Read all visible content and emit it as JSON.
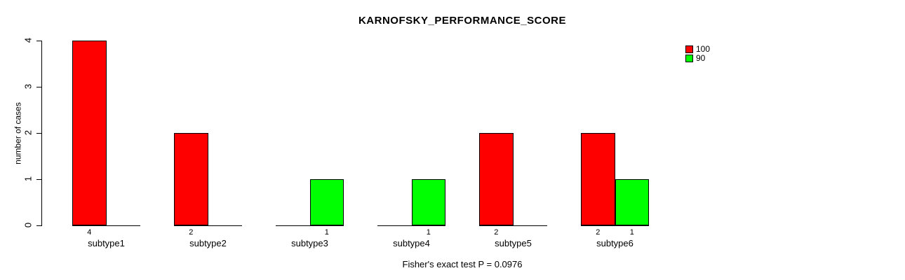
{
  "chart_data": {
    "type": "bar",
    "grouped": true,
    "title": "KARNOFSKY_PERFORMANCE_SCORE",
    "xlabel": "",
    "ylabel": "number of cases",
    "ylim": [
      0,
      4
    ],
    "yticks": [
      0,
      1,
      2,
      3,
      4
    ],
    "grid": false,
    "legend_position": "top-right",
    "categories": [
      "subtype1",
      "subtype2",
      "subtype3",
      "subtype4",
      "subtype5",
      "subtype6"
    ],
    "series": [
      {
        "name": "100",
        "color": "#FF0000",
        "values": [
          4,
          2,
          0,
          0,
          2,
          2
        ]
      },
      {
        "name": "90",
        "color": "#00FF00",
        "values": [
          0,
          0,
          1,
          1,
          0,
          1
        ]
      }
    ],
    "bar_value_labels": {
      "subtype1": [
        "4",
        ""
      ],
      "subtype2": [
        "2",
        ""
      ],
      "subtype3": [
        "",
        "1"
      ],
      "subtype4": [
        "",
        "1"
      ],
      "subtype5": [
        "2",
        ""
      ],
      "subtype6": [
        "2",
        "1"
      ]
    },
    "annotation": "Fisher's exact test P = 0.0976"
  },
  "legend": {
    "entries": [
      {
        "label": "100",
        "color": "#FF0000"
      },
      {
        "label": "90",
        "color": "#00FF00"
      }
    ]
  }
}
